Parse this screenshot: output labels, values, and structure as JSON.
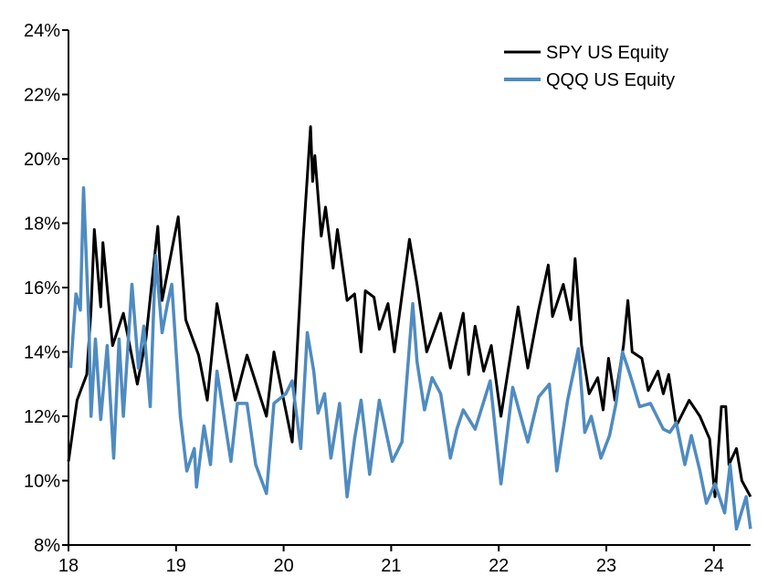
{
  "chart_data": {
    "type": "line",
    "title": "",
    "xlabel": "",
    "ylabel": "",
    "xlim": [
      18,
      24.4
    ],
    "ylim": [
      8,
      24
    ],
    "x_ticks": [
      18,
      19,
      20,
      21,
      22,
      23,
      24
    ],
    "x_tick_labels": [
      "18",
      "19",
      "20",
      "21",
      "22",
      "23",
      "24"
    ],
    "y_ticks": [
      8,
      10,
      12,
      14,
      16,
      18,
      20,
      22,
      24
    ],
    "y_tick_labels": [
      "8%",
      "10%",
      "12%",
      "14%",
      "16%",
      "18%",
      "20%",
      "22%",
      "24%"
    ],
    "grid": false,
    "legend_position": "top-right",
    "series": [
      {
        "name": "SPY US Equity",
        "color": "#000000",
        "points": [
          [
            18.0,
            10.6
          ],
          [
            18.08,
            12.5
          ],
          [
            18.17,
            13.3
          ],
          [
            18.21,
            15.3
          ],
          [
            18.24,
            17.8
          ],
          [
            18.3,
            15.4
          ],
          [
            18.32,
            17.4
          ],
          [
            18.41,
            14.2
          ],
          [
            18.51,
            15.2
          ],
          [
            18.64,
            13.0
          ],
          [
            18.72,
            14.4
          ],
          [
            18.83,
            17.9
          ],
          [
            18.87,
            15.6
          ],
          [
            19.02,
            18.2
          ],
          [
            19.09,
            15.0
          ],
          [
            19.21,
            13.9
          ],
          [
            19.29,
            12.5
          ],
          [
            19.38,
            15.5
          ],
          [
            19.55,
            12.5
          ],
          [
            19.66,
            13.9
          ],
          [
            19.84,
            12.0
          ],
          [
            19.91,
            14.0
          ],
          [
            20.08,
            11.2
          ],
          [
            20.18,
            17.4
          ],
          [
            20.25,
            21.0
          ],
          [
            20.27,
            19.3
          ],
          [
            20.29,
            20.1
          ],
          [
            20.35,
            17.6
          ],
          [
            20.39,
            18.5
          ],
          [
            20.46,
            16.6
          ],
          [
            20.5,
            17.8
          ],
          [
            20.59,
            15.6
          ],
          [
            20.66,
            15.8
          ],
          [
            20.72,
            14.0
          ],
          [
            20.76,
            15.9
          ],
          [
            20.84,
            15.7
          ],
          [
            20.89,
            14.7
          ],
          [
            20.97,
            15.5
          ],
          [
            21.03,
            14.0
          ],
          [
            21.17,
            17.5
          ],
          [
            21.24,
            16.1
          ],
          [
            21.33,
            14.0
          ],
          [
            21.46,
            15.2
          ],
          [
            21.55,
            13.5
          ],
          [
            21.67,
            15.2
          ],
          [
            21.72,
            13.3
          ],
          [
            21.78,
            14.8
          ],
          [
            21.86,
            13.4
          ],
          [
            21.93,
            14.2
          ],
          [
            22.02,
            12.0
          ],
          [
            22.1,
            13.7
          ],
          [
            22.18,
            15.4
          ],
          [
            22.27,
            13.5
          ],
          [
            22.37,
            15.3
          ],
          [
            22.46,
            16.7
          ],
          [
            22.5,
            15.1
          ],
          [
            22.6,
            16.1
          ],
          [
            22.67,
            15.0
          ],
          [
            22.71,
            16.9
          ],
          [
            22.77,
            14.2
          ],
          [
            22.84,
            12.7
          ],
          [
            22.92,
            13.2
          ],
          [
            22.97,
            12.2
          ],
          [
            23.02,
            13.8
          ],
          [
            23.08,
            12.5
          ],
          [
            23.16,
            14.2
          ],
          [
            23.2,
            15.6
          ],
          [
            23.24,
            14.0
          ],
          [
            23.33,
            13.8
          ],
          [
            23.39,
            12.8
          ],
          [
            23.48,
            13.4
          ],
          [
            23.53,
            12.7
          ],
          [
            23.58,
            13.3
          ],
          [
            23.65,
            11.7
          ],
          [
            23.77,
            12.5
          ],
          [
            23.87,
            12.0
          ],
          [
            23.96,
            11.3
          ],
          [
            24.01,
            9.5
          ],
          [
            24.07,
            12.3
          ],
          [
            24.11,
            12.3
          ],
          [
            24.14,
            10.5
          ],
          [
            24.21,
            11.0
          ],
          [
            24.26,
            10.0
          ],
          [
            24.34,
            9.5
          ]
        ]
      },
      {
        "name": "QQQ US Equity",
        "color": "#4f8bc0",
        "points": [
          [
            18.02,
            13.5
          ],
          [
            18.07,
            15.8
          ],
          [
            18.11,
            15.3
          ],
          [
            18.14,
            19.1
          ],
          [
            18.19,
            14.8
          ],
          [
            18.21,
            12.0
          ],
          [
            18.25,
            14.4
          ],
          [
            18.3,
            11.9
          ],
          [
            18.36,
            14.2
          ],
          [
            18.42,
            10.7
          ],
          [
            18.47,
            14.4
          ],
          [
            18.51,
            12.0
          ],
          [
            18.59,
            16.1
          ],
          [
            18.65,
            13.5
          ],
          [
            18.7,
            14.8
          ],
          [
            18.76,
            12.3
          ],
          [
            18.81,
            17.0
          ],
          [
            18.87,
            14.6
          ],
          [
            18.92,
            15.5
          ],
          [
            18.96,
            16.1
          ],
          [
            19.04,
            12.0
          ],
          [
            19.1,
            10.3
          ],
          [
            19.17,
            11.0
          ],
          [
            19.19,
            9.8
          ],
          [
            19.26,
            11.7
          ],
          [
            19.32,
            10.5
          ],
          [
            19.38,
            13.4
          ],
          [
            19.51,
            10.6
          ],
          [
            19.57,
            12.4
          ],
          [
            19.66,
            12.4
          ],
          [
            19.74,
            10.5
          ],
          [
            19.84,
            9.6
          ],
          [
            19.91,
            12.4
          ],
          [
            20.02,
            12.7
          ],
          [
            20.08,
            13.1
          ],
          [
            20.16,
            11.0
          ],
          [
            20.22,
            14.6
          ],
          [
            20.28,
            13.4
          ],
          [
            20.32,
            12.1
          ],
          [
            20.38,
            12.7
          ],
          [
            20.44,
            10.7
          ],
          [
            20.52,
            12.4
          ],
          [
            20.59,
            9.5
          ],
          [
            20.66,
            11.3
          ],
          [
            20.72,
            12.5
          ],
          [
            20.8,
            10.2
          ],
          [
            20.89,
            12.5
          ],
          [
            21.01,
            10.6
          ],
          [
            21.1,
            11.2
          ],
          [
            21.2,
            15.5
          ],
          [
            21.24,
            13.7
          ],
          [
            21.31,
            12.2
          ],
          [
            21.38,
            13.2
          ],
          [
            21.46,
            12.7
          ],
          [
            21.55,
            10.7
          ],
          [
            21.61,
            11.6
          ],
          [
            21.67,
            12.2
          ],
          [
            21.78,
            11.6
          ],
          [
            21.92,
            13.1
          ],
          [
            22.02,
            9.9
          ],
          [
            22.13,
            12.9
          ],
          [
            22.27,
            11.2
          ],
          [
            22.37,
            12.6
          ],
          [
            22.47,
            13.0
          ],
          [
            22.54,
            10.3
          ],
          [
            22.64,
            12.5
          ],
          [
            22.74,
            14.1
          ],
          [
            22.8,
            11.5
          ],
          [
            22.86,
            12.0
          ],
          [
            22.95,
            10.7
          ],
          [
            23.03,
            11.4
          ],
          [
            23.09,
            12.4
          ],
          [
            23.15,
            14.0
          ],
          [
            23.22,
            13.3
          ],
          [
            23.31,
            12.3
          ],
          [
            23.41,
            12.4
          ],
          [
            23.53,
            11.6
          ],
          [
            23.59,
            11.5
          ],
          [
            23.65,
            11.8
          ],
          [
            23.73,
            10.5
          ],
          [
            23.79,
            11.4
          ],
          [
            23.87,
            10.3
          ],
          [
            23.93,
            9.3
          ],
          [
            24.01,
            9.9
          ],
          [
            24.1,
            9.0
          ],
          [
            24.15,
            10.5
          ],
          [
            24.21,
            8.5
          ],
          [
            24.3,
            9.5
          ],
          [
            24.34,
            8.5
          ]
        ]
      }
    ]
  }
}
